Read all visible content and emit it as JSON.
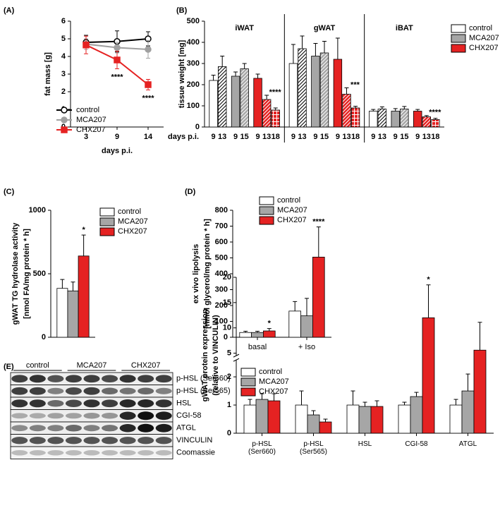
{
  "chart_data": [
    {
      "type": "line",
      "panel": "(A)",
      "ylabel": "fat mass [g]",
      "xlabel": "days p.i.",
      "categories": [
        "3",
        "9",
        "14"
      ],
      "ylim": [
        0,
        6
      ],
      "yticks": [
        0,
        1,
        2,
        3,
        4,
        5,
        6
      ],
      "legend": true,
      "series": [
        {
          "name": "control",
          "color": "#000000",
          "fill": "#ffffff",
          "marker": "circle",
          "values": [
            4.8,
            4.85,
            5.0
          ],
          "errors": [
            0.4,
            0.6,
            0.4
          ]
        },
        {
          "name": "MCA207",
          "color": "#a0a0a0",
          "fill": "#a0a0a0",
          "marker": "circle",
          "values": [
            4.7,
            4.5,
            4.4
          ],
          "errors": [
            0.3,
            0.3,
            0.5
          ]
        },
        {
          "name": "CHX207",
          "color": "#e52222",
          "fill": "#e52222",
          "marker": "square",
          "values": [
            4.65,
            3.8,
            2.4
          ],
          "errors": [
            0.5,
            0.5,
            0.3
          ]
        }
      ],
      "annotations": [
        {
          "text": "****",
          "series": 2,
          "index": 1
        },
        {
          "text": "****",
          "series": 2,
          "index": 2
        }
      ]
    },
    {
      "type": "grouped_bar",
      "panel": "(B)",
      "ylabel": "tissue weight [mg]",
      "xlabel": "days p.i.",
      "groups": [
        "iWAT",
        "gWAT",
        "iBAT"
      ],
      "ylim": [
        0,
        500
      ],
      "yticks": [
        0,
        100,
        200,
        300,
        400,
        500
      ],
      "legend": true,
      "series": [
        {
          "name": "control",
          "color": "#ffffff",
          "days": [
            "9",
            "13"
          ],
          "values": [
            [
              220,
              285
            ],
            [
              300,
              370
            ],
            [
              75,
              85
            ]
          ],
          "errors": [
            [
              25,
              50
            ],
            [
              90,
              60
            ],
            [
              8,
              10
            ]
          ]
        },
        {
          "name": "MCA207",
          "color": "#a6a6a6",
          "days": [
            "9",
            "15"
          ],
          "values": [
            [
              240,
              275
            ],
            [
              335,
              350
            ],
            [
              75,
              85
            ]
          ],
          "errors": [
            [
              20,
              25
            ],
            [
              60,
              55
            ],
            [
              12,
              12
            ]
          ]
        },
        {
          "name": "CHX207",
          "color": "#e52222",
          "days": [
            "9",
            "13",
            "18"
          ],
          "values": [
            [
              230,
              130,
              80
            ],
            [
              320,
              155,
              90
            ],
            [
              75,
              48,
              35
            ]
          ],
          "errors": [
            [
              20,
              20,
              10
            ],
            [
              100,
              30,
              8
            ],
            [
              8,
              6,
              6
            ]
          ]
        }
      ],
      "annotations": [
        {
          "text": "****",
          "group": 0,
          "series": 2,
          "day": 1
        },
        {
          "text": "***",
          "group": 1,
          "series": 2,
          "day": 1
        },
        {
          "text": "****",
          "group": 2,
          "series": 2,
          "day": 1
        }
      ]
    },
    {
      "type": "bar",
      "panel": "(C)",
      "ylabel": [
        "gWAT TG hydrolase activity",
        "[nmol FA/mg protein * h]"
      ],
      "ylim": [
        0,
        1000
      ],
      "yticks": [
        0,
        500,
        1000
      ],
      "legend": true,
      "series": [
        {
          "name": "control",
          "color": "#ffffff",
          "values": [
            385
          ],
          "errors": [
            70
          ]
        },
        {
          "name": "MCA207",
          "color": "#a6a6a6",
          "values": [
            365
          ],
          "errors": [
            70
          ]
        },
        {
          "name": "CHX207",
          "color": "#e52222",
          "values": [
            640
          ],
          "errors": [
            165
          ]
        }
      ],
      "annotations": [
        {
          "text": "*",
          "series": 2,
          "index": 0
        }
      ]
    },
    {
      "type": "bar",
      "panel": "(D)",
      "ylabel": [
        "ex vivo lipolysis",
        "[nmol glycerol/mg protein * h]"
      ],
      "categories": [
        "basal",
        "+ Iso"
      ],
      "ylim": [
        0,
        800
      ],
      "yticks": [
        0,
        100,
        200,
        300,
        400,
        500,
        600,
        700,
        800
      ],
      "legend": true,
      "series": [
        {
          "name": "control",
          "color": "#ffffff",
          "values": [
            30,
            165
          ],
          "errors": [
            8,
            60
          ]
        },
        {
          "name": "MCA207",
          "color": "#a6a6a6",
          "values": [
            30,
            135
          ],
          "errors": [
            8,
            110
          ]
        },
        {
          "name": "CHX207",
          "color": "#e52222",
          "values": [
            40,
            505
          ],
          "errors": [
            15,
            190
          ]
        }
      ],
      "annotations": [
        {
          "text": "*",
          "series": 2,
          "index": 0
        },
        {
          "text": "****",
          "series": 2,
          "index": 1
        }
      ]
    },
    {
      "type": "bar",
      "ylabel": [
        "gWAT protein expression",
        "(relative to VINCULIN)"
      ],
      "categories": [
        "p-HSL (Ser660)",
        "p-HSL (Ser565)",
        "HSL",
        "CGI-58",
        "ATGL"
      ],
      "ylim": [
        0,
        20
      ],
      "ybreak": [
        2.6,
        4.5
      ],
      "yticks": [
        0,
        1,
        2,
        5,
        10,
        15,
        20
      ],
      "legend": true,
      "series": [
        {
          "name": "control",
          "color": "#ffffff",
          "values": [
            1.0,
            1.0,
            1.0,
            1.0,
            1.0
          ],
          "errors": [
            0.2,
            0.5,
            0.5,
            0.1,
            0.2
          ]
        },
        {
          "name": "MCA207",
          "color": "#a6a6a6",
          "values": [
            1.2,
            0.65,
            0.95,
            1.3,
            1.5
          ],
          "errors": [
            0.2,
            0.15,
            0.15,
            0.15,
            0.6
          ]
        },
        {
          "name": "CHX207",
          "color": "#e52222",
          "values": [
            1.15,
            0.4,
            0.95,
            12,
            5.6
          ],
          "errors": [
            0.25,
            0.1,
            0.2,
            6.5,
            5.5
          ]
        }
      ],
      "annotations": [
        {
          "text": "*",
          "series": 2,
          "index": 3
        }
      ]
    }
  ],
  "blot": {
    "panel": "(E)",
    "lanes": [
      "control",
      "MCA207",
      "CHX207"
    ],
    "bands": [
      "p-HSL (Ser660)",
      "p-HSL (Ser565)",
      "HSL",
      "CGI-58",
      "ATGL",
      "VINCULIN",
      "Coomassie"
    ]
  }
}
